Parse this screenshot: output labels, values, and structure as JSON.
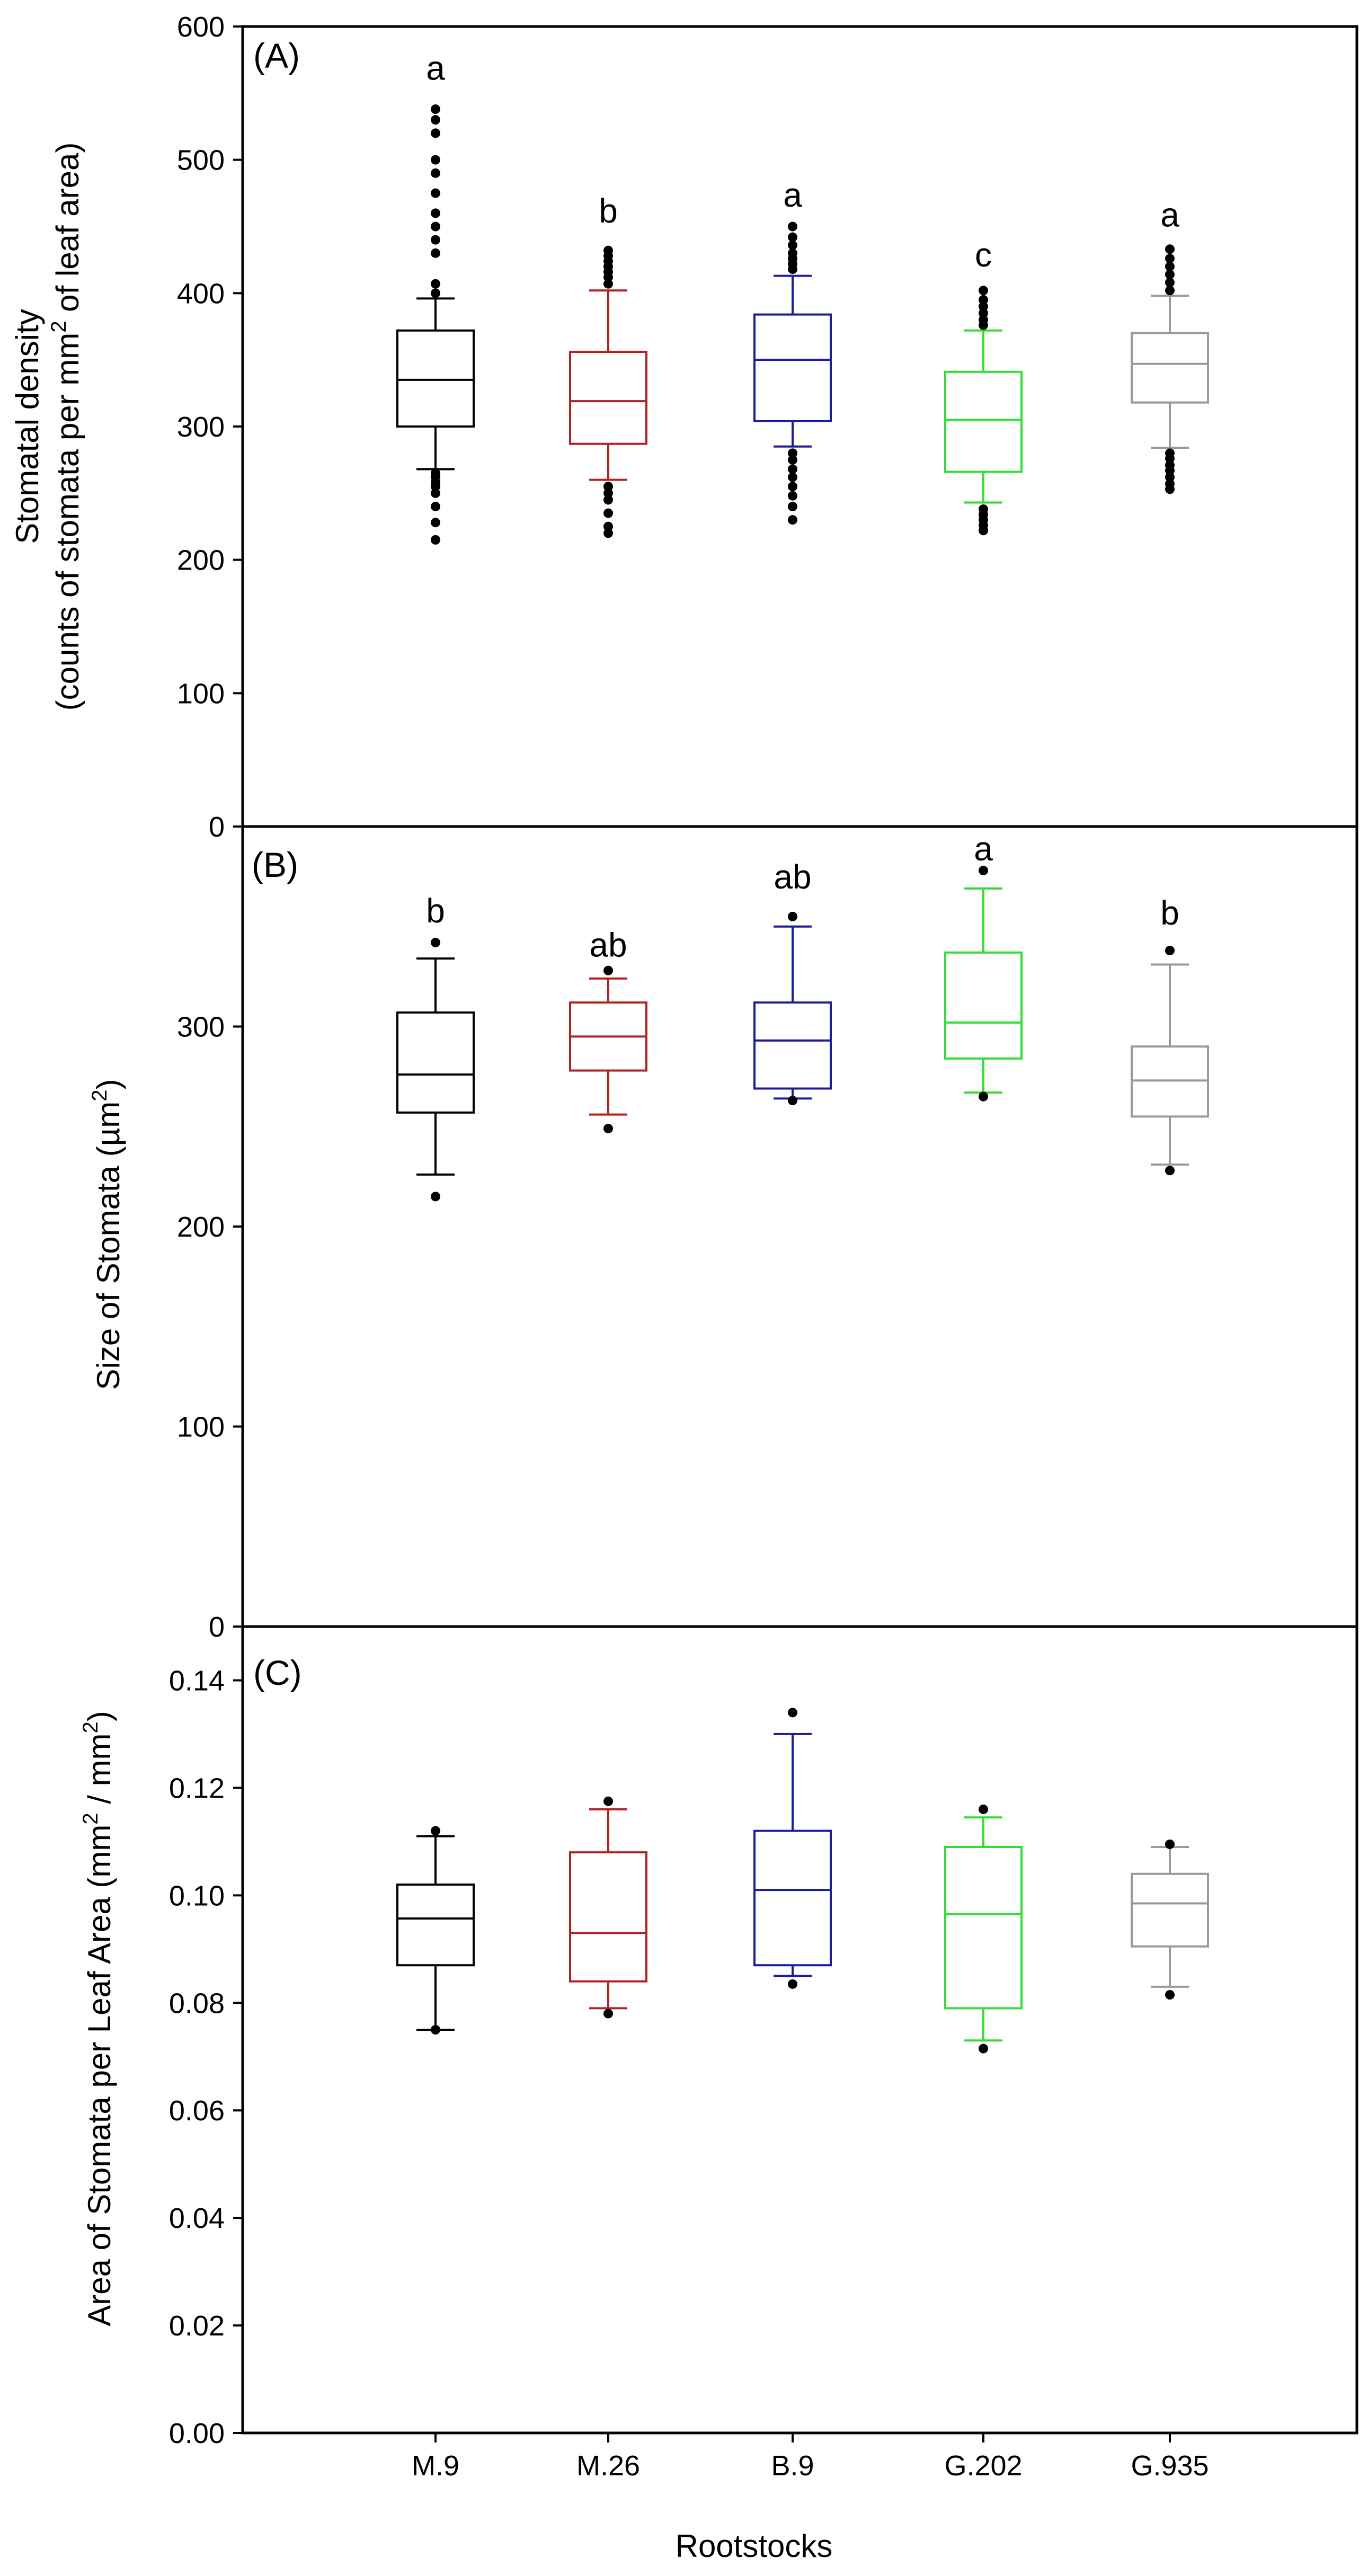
{
  "figure": {
    "xlabel": "Rootstocks",
    "categories": [
      "M.9",
      "M.26",
      "B.9",
      "G.202",
      "G.935"
    ],
    "colors": {
      "M.9": "#000000",
      "M.26": "#b22222",
      "B.9": "#1c1c9c",
      "G.202": "#33dd33",
      "G.935": "#999999",
      "outlier": "#000000",
      "frame": "#000000"
    }
  },
  "chart_data": [
    {
      "type": "box",
      "panel_label": "(A)",
      "title": "",
      "ylabel_line1": "Stomatal density",
      "ylabel_line2_pre": "(counts of stomata per mm",
      "ylabel_line2_sup": "2",
      "ylabel_line2_post": " of leaf  area)",
      "ylim": [
        0,
        600
      ],
      "yticks": [
        0,
        100,
        200,
        300,
        400,
        500,
        600
      ],
      "yticklabels": [
        "0",
        "100",
        "200",
        "300",
        "400",
        "500",
        "600"
      ],
      "boxes": [
        {
          "category": "M.9",
          "whisker_low": 268,
          "q1": 300,
          "median": 335,
          "q3": 372,
          "whisker_high": 396,
          "letter": "a",
          "letter_y": 560,
          "outliers": [
            215,
            228,
            240,
            250,
            255,
            258,
            262,
            265,
            400,
            407,
            430,
            440,
            450,
            460,
            475,
            490,
            500,
            520,
            530,
            538
          ]
        },
        {
          "category": "M.26",
          "whisker_low": 260,
          "q1": 287,
          "median": 319,
          "q3": 356,
          "whisker_high": 402,
          "letter": "b",
          "letter_y": 453,
          "outliers": [
            220,
            225,
            235,
            245,
            250,
            255,
            407,
            412,
            416,
            420,
            424,
            428,
            432
          ]
        },
        {
          "category": "B.9",
          "whisker_low": 285,
          "q1": 304,
          "median": 350,
          "q3": 384,
          "whisker_high": 413,
          "letter": "a",
          "letter_y": 465,
          "outliers": [
            230,
            240,
            248,
            255,
            262,
            268,
            275,
            280,
            418,
            422,
            426,
            430,
            436,
            442,
            450
          ]
        },
        {
          "category": "G.202",
          "whisker_low": 243,
          "q1": 266,
          "median": 305,
          "q3": 341,
          "whisker_high": 372,
          "letter": "c",
          "letter_y": 420,
          "outliers": [
            222,
            226,
            230,
            234,
            238,
            376,
            380,
            385,
            390,
            395,
            402
          ]
        },
        {
          "category": "G.935",
          "whisker_low": 284,
          "q1": 318,
          "median": 347,
          "q3": 370,
          "whisker_high": 398,
          "letter": "a",
          "letter_y": 450,
          "outliers": [
            253,
            257,
            262,
            267,
            271,
            276,
            280,
            402,
            408,
            414,
            420,
            426,
            433
          ]
        }
      ]
    },
    {
      "type": "box",
      "panel_label": "(B)",
      "title": "",
      "ylabel_pre": "Size of Stomata (",
      "ylabel_mu": "µm",
      "ylabel_sup": "2",
      "ylabel_post": ")",
      "ylim": [
        0,
        400
      ],
      "yticks": [
        0,
        100,
        200,
        300
      ],
      "yticklabels": [
        "0",
        "100",
        "200",
        "300"
      ],
      "boxes": [
        {
          "category": "M.9",
          "whisker_low": 226,
          "q1": 257,
          "median": 276,
          "q3": 307,
          "whisker_high": 334,
          "letter": "b",
          "letter_y": 352,
          "outliers": [
            215,
            342
          ]
        },
        {
          "category": "M.26",
          "whisker_low": 256,
          "q1": 278,
          "median": 295,
          "q3": 312,
          "whisker_high": 324,
          "letter": "ab",
          "letter_y": 335,
          "outliers": [
            249,
            328
          ]
        },
        {
          "category": "B.9",
          "whisker_low": 264,
          "q1": 269,
          "median": 293,
          "q3": 312,
          "whisker_high": 350,
          "letter": "ab",
          "letter_y": 369,
          "outliers": [
            263,
            355
          ]
        },
        {
          "category": "G.202",
          "whisker_low": 267,
          "q1": 284,
          "median": 302,
          "q3": 337,
          "whisker_high": 369,
          "letter": "a",
          "letter_y": 383,
          "outliers": [
            265,
            378
          ]
        },
        {
          "category": "G.935",
          "whisker_low": 231,
          "q1": 255,
          "median": 273,
          "q3": 290,
          "whisker_high": 331,
          "letter": "b",
          "letter_y": 351,
          "outliers": [
            228,
            338
          ]
        }
      ]
    },
    {
      "type": "box",
      "panel_label": "(C)",
      "title": "",
      "ylabel_pre": "Area of Stomata per Leaf Area (mm",
      "ylabel_sup1": "2",
      "ylabel_mid": " / mm",
      "ylabel_sup2": "2",
      "ylabel_post": ")",
      "ylim": [
        0,
        0.15
      ],
      "yticks": [
        0,
        0.02,
        0.04,
        0.06,
        0.08,
        0.1,
        0.12,
        0.14
      ],
      "yticklabels": [
        "0.00",
        "0.02",
        "0.04",
        "0.06",
        "0.08",
        "0.10",
        "0.12",
        "0.14"
      ],
      "boxes": [
        {
          "category": "M.9",
          "whisker_low": 0.075,
          "q1": 0.087,
          "median": 0.0957,
          "q3": 0.102,
          "whisker_high": 0.111,
          "outliers": [
            0.075,
            0.112
          ]
        },
        {
          "category": "M.26",
          "whisker_low": 0.079,
          "q1": 0.084,
          "median": 0.093,
          "q3": 0.108,
          "whisker_high": 0.116,
          "outliers": [
            0.078,
            0.1175
          ]
        },
        {
          "category": "B.9",
          "whisker_low": 0.085,
          "q1": 0.087,
          "median": 0.101,
          "q3": 0.112,
          "whisker_high": 0.13,
          "outliers": [
            0.0835,
            0.134
          ]
        },
        {
          "category": "G.202",
          "whisker_low": 0.073,
          "q1": 0.079,
          "median": 0.0965,
          "q3": 0.109,
          "whisker_high": 0.1145,
          "outliers": [
            0.0715,
            0.116
          ]
        },
        {
          "category": "G.935",
          "whisker_low": 0.083,
          "q1": 0.0905,
          "median": 0.0985,
          "q3": 0.104,
          "whisker_high": 0.109,
          "outliers": [
            0.0815,
            0.1095
          ]
        }
      ]
    }
  ]
}
